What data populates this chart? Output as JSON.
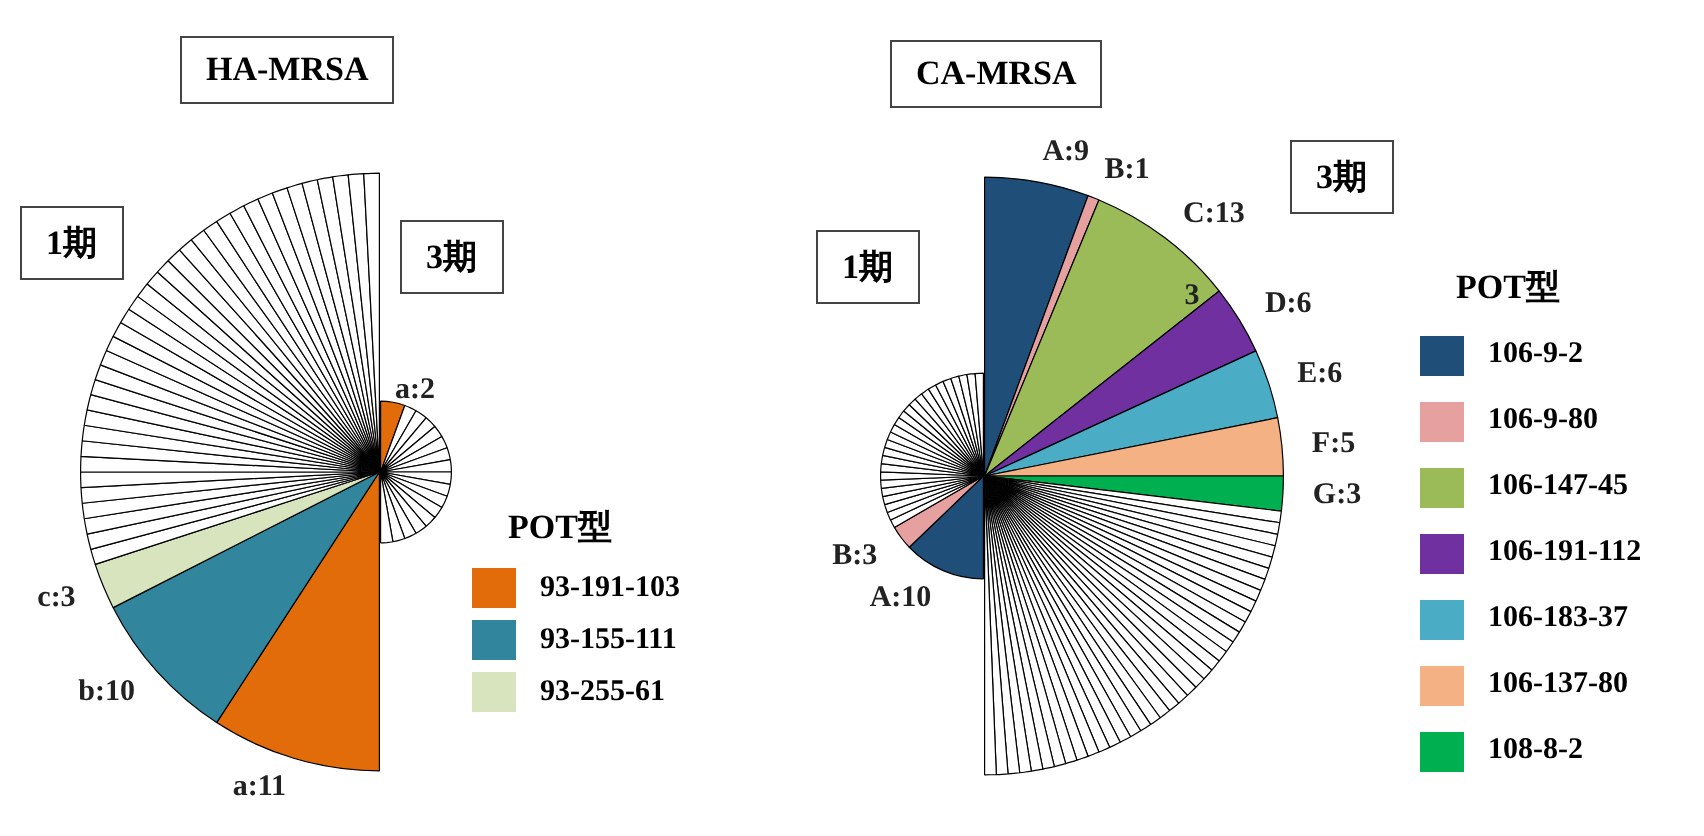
{
  "chart_data": [
    {
      "type": "pie",
      "title": "HA-MRSA",
      "subtitle": "1期",
      "legend_title": "POT型",
      "legend": "right",
      "categories": [
        "93-191-103",
        "93-155-111",
        "93-255-61",
        null,
        null,
        null,
        null,
        null,
        null,
        null,
        null,
        null,
        null,
        null,
        null,
        null,
        null,
        null,
        null,
        null,
        null,
        null,
        null,
        null,
        null,
        null,
        null,
        null,
        null,
        null,
        null,
        null,
        null,
        null,
        null,
        null,
        null,
        null,
        null
      ],
      "values": [
        11,
        10,
        3,
        1,
        1,
        1,
        1,
        1,
        1,
        1,
        1,
        1,
        1,
        1,
        1,
        1,
        1,
        1,
        1,
        1,
        1,
        1,
        1,
        1,
        1,
        1,
        1,
        1,
        1,
        1,
        1,
        1,
        1,
        1,
        1,
        1,
        1,
        1,
        1
      ],
      "colors": [
        "#e36c0a",
        "#31859c",
        "#d7e4bd",
        "#ffffff",
        "#ffffff",
        "#ffffff",
        "#ffffff",
        "#ffffff",
        "#ffffff",
        "#ffffff",
        "#ffffff",
        "#ffffff",
        "#ffffff",
        "#ffffff",
        "#ffffff",
        "#ffffff",
        "#ffffff",
        "#ffffff",
        "#ffffff",
        "#ffffff",
        "#ffffff",
        "#ffffff",
        "#ffffff",
        "#ffffff",
        "#ffffff",
        "#ffffff",
        "#ffffff",
        "#ffffff",
        "#ffffff",
        "#ffffff",
        "#ffffff",
        "#ffffff",
        "#ffffff",
        "#ffffff",
        "#ffffff",
        "#ffffff",
        "#ffffff",
        "#ffffff",
        "#ffffff"
      ],
      "value_labels": [
        "a:11",
        "b:10",
        "c:3",
        null,
        null,
        null,
        null,
        null,
        null,
        null,
        null,
        null,
        null,
        null,
        null,
        null,
        null,
        null,
        null,
        null,
        null,
        null,
        null,
        null,
        null,
        null,
        null,
        null,
        null,
        null,
        null,
        null,
        null,
        null,
        null,
        null,
        null,
        null,
        null
      ]
    },
    {
      "type": "pie",
      "subtitle": "3期",
      "categories": [
        null,
        null,
        null,
        null,
        null,
        null,
        null,
        null,
        null,
        null,
        null,
        null,
        null,
        null,
        null,
        null,
        null
      ],
      "values": [
        2,
        1,
        1,
        1,
        1,
        1,
        1,
        1,
        1,
        1,
        1,
        1,
        1,
        1,
        1,
        1,
        1
      ],
      "colors": [
        "#e36c0a",
        "#ffffff",
        "#ffffff",
        "#ffffff",
        "#ffffff",
        "#ffffff",
        "#ffffff",
        "#ffffff",
        "#ffffff",
        "#ffffff",
        "#ffffff",
        "#ffffff",
        "#ffffff",
        "#ffffff",
        "#ffffff",
        "#ffffff",
        "#ffffff"
      ],
      "value_labels": [
        "a:2",
        null,
        null,
        null,
        null,
        null,
        null,
        null,
        null,
        null,
        null,
        null,
        null,
        null,
        null,
        null,
        null
      ]
    },
    {
      "type": "pie",
      "title": "CA-MRSA",
      "subtitle": "1期",
      "categories": [
        null,
        null,
        null,
        null,
        null,
        null,
        null,
        null,
        null,
        null,
        null,
        null,
        null,
        null,
        null,
        null,
        null,
        null,
        null,
        null,
        null,
        null,
        null,
        null,
        null,
        null,
        null,
        null
      ],
      "values": [
        10,
        3,
        1,
        1,
        1,
        1,
        1,
        1,
        1,
        1,
        1,
        1,
        1,
        1,
        1,
        1,
        1,
        1,
        1,
        1,
        1,
        1,
        1,
        1,
        1,
        1,
        1,
        1
      ],
      "colors": [
        "#1f4e79",
        "#e6a0a0",
        "#ffffff",
        "#ffffff",
        "#ffffff",
        "#ffffff",
        "#ffffff",
        "#ffffff",
        "#ffffff",
        "#ffffff",
        "#ffffff",
        "#ffffff",
        "#ffffff",
        "#ffffff",
        "#ffffff",
        "#ffffff",
        "#ffffff",
        "#ffffff",
        "#ffffff",
        "#ffffff",
        "#ffffff",
        "#ffffff",
        "#ffffff",
        "#ffffff",
        "#ffffff",
        "#ffffff",
        "#ffffff",
        "#ffffff"
      ],
      "value_labels": [
        "A:10",
        "B:3",
        null,
        null,
        null,
        null,
        null,
        null,
        null,
        null,
        null,
        null,
        null,
        null,
        null,
        null,
        null,
        null,
        null,
        null,
        null,
        null,
        null,
        null,
        null,
        null,
        null,
        null
      ]
    },
    {
      "type": "pie",
      "subtitle": "3期",
      "legend_title": "POT型",
      "legend": "right",
      "annotations": [
        "3"
      ],
      "categories": [
        "106-9-2",
        "106-9-80",
        "106-147-45",
        "106-191-112",
        "106-183-37",
        "106-137-80",
        "108-8-2",
        null,
        null,
        null,
        null,
        null,
        null,
        null,
        null,
        null,
        null,
        null,
        null,
        null,
        null,
        null,
        null,
        null,
        null,
        null,
        null,
        null,
        null,
        null,
        null,
        null,
        null,
        null,
        null,
        null,
        null,
        null,
        null,
        null,
        null,
        null,
        null,
        null
      ],
      "values": [
        9,
        1,
        13,
        6,
        6,
        5,
        3,
        1,
        1,
        1,
        1,
        1,
        1,
        1,
        1,
        1,
        1,
        1,
        1,
        1,
        1,
        1,
        1,
        1,
        1,
        1,
        1,
        1,
        1,
        1,
        1,
        1,
        1,
        1,
        1,
        1,
        1,
        1,
        1,
        1,
        1,
        1,
        1,
        1
      ],
      "colors": [
        "#1f4e79",
        "#e6a0a0",
        "#9bbb59",
        "#7030a0",
        "#4bacc6",
        "#f4b183",
        "#00b050",
        "#ffffff",
        "#ffffff",
        "#ffffff",
        "#ffffff",
        "#ffffff",
        "#ffffff",
        "#ffffff",
        "#ffffff",
        "#ffffff",
        "#ffffff",
        "#ffffff",
        "#ffffff",
        "#ffffff",
        "#ffffff",
        "#ffffff",
        "#ffffff",
        "#ffffff",
        "#ffffff",
        "#ffffff",
        "#ffffff",
        "#ffffff",
        "#ffffff",
        "#ffffff",
        "#ffffff",
        "#ffffff",
        "#ffffff",
        "#ffffff",
        "#ffffff",
        "#ffffff",
        "#ffffff",
        "#ffffff",
        "#ffffff",
        "#ffffff",
        "#ffffff",
        "#ffffff",
        "#ffffff",
        "#ffffff"
      ],
      "value_labels": [
        "A:9",
        "B:1",
        "C:13",
        "D:6",
        "E:6",
        "F:5",
        "G:3",
        null,
        null,
        null,
        null,
        null,
        null,
        null,
        null,
        null,
        null,
        null,
        null,
        null,
        null,
        null,
        null,
        null,
        null,
        null,
        null,
        null,
        null,
        null,
        null,
        null,
        null,
        null,
        null,
        null,
        null,
        null,
        null,
        null,
        null,
        null,
        null,
        null
      ]
    }
  ]
}
